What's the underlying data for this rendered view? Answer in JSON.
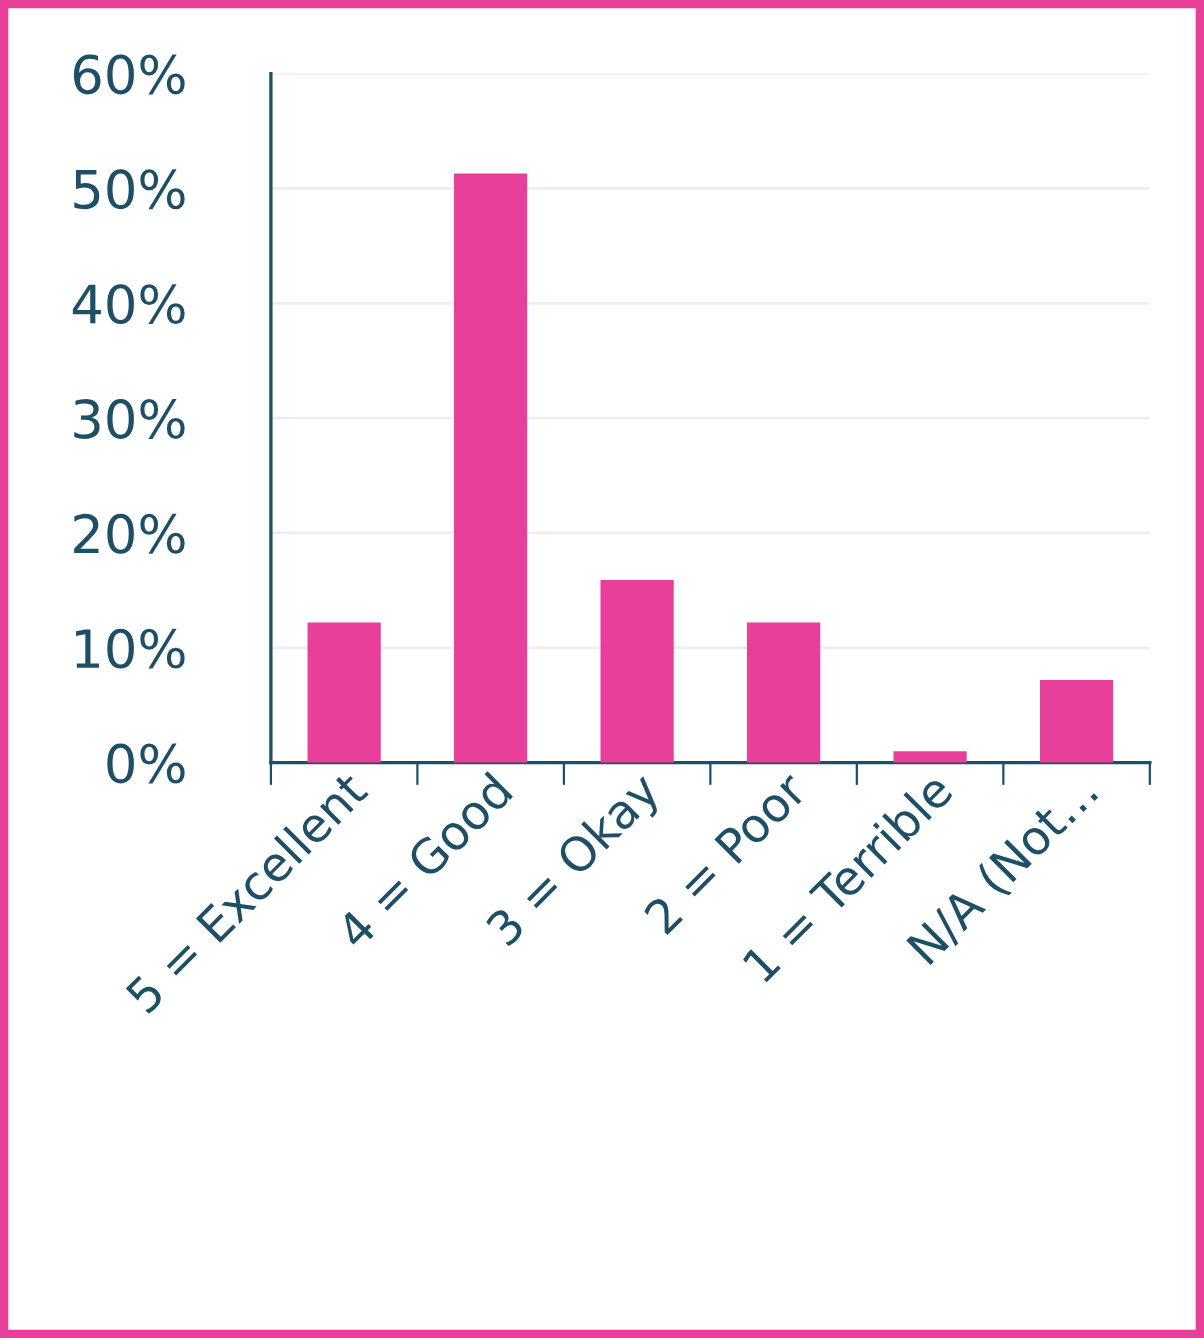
{
  "chart_data": {
    "type": "bar",
    "categories": [
      "5 = Excellent",
      "4 = Good",
      "3 = Okay",
      "2 = Poor",
      "1 = Terrible",
      "N/A (Not…"
    ],
    "values": [
      12.2,
      51.3,
      15.9,
      12.2,
      1.0,
      7.2
    ],
    "color": "#e8409a",
    "ylim": [
      0,
      60
    ],
    "yticks": [
      {
        "value": 0,
        "label": "0%"
      },
      {
        "value": 10,
        "label": "10%"
      },
      {
        "value": 20,
        "label": "20%"
      },
      {
        "value": 30,
        "label": "30%"
      },
      {
        "value": 40,
        "label": "40%"
      },
      {
        "value": 50,
        "label": "50%"
      },
      {
        "value": 60,
        "label": "60%"
      }
    ],
    "grid": "y"
  }
}
